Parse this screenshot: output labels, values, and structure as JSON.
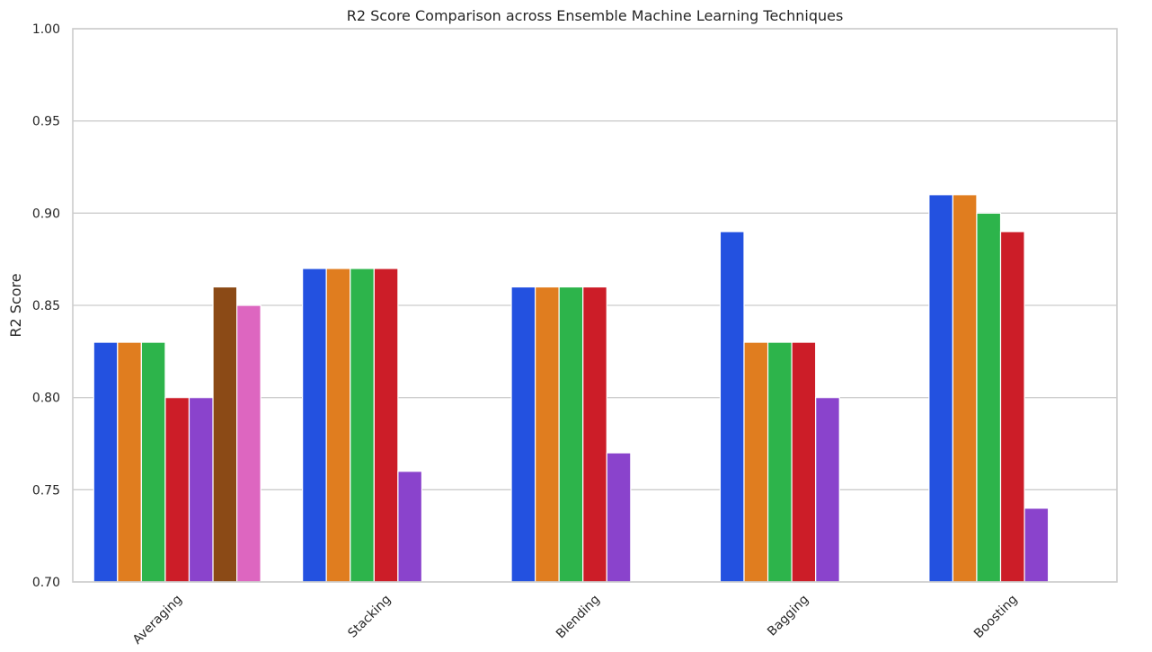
{
  "chart_data": {
    "type": "bar",
    "title": "R2 Score Comparison across Ensemble Machine Learning Techniques",
    "xlabel": "",
    "ylabel": "R2 Score",
    "ylim": [
      0.7,
      1.0
    ],
    "yticks": [
      "0.70",
      "0.75",
      "0.80",
      "0.85",
      "0.90",
      "0.95",
      "1.00"
    ],
    "grid": true,
    "legend": "none",
    "categories": [
      "Averaging",
      "Stacking",
      "Blending",
      "Bagging",
      "Boosting"
    ],
    "colors": [
      "#2351e0",
      "#e07d1f",
      "#2db44b",
      "#cc1d28",
      "#8a43cc",
      "#8b4a16",
      "#dd66c0"
    ],
    "groups": [
      [
        0.83,
        0.83,
        0.83,
        0.8,
        0.8,
        0.86,
        0.85
      ],
      [
        0.87,
        0.87,
        0.87,
        0.87,
        0.76
      ],
      [
        0.86,
        0.86,
        0.86,
        0.86,
        0.77
      ],
      [
        0.89,
        0.83,
        0.83,
        0.83,
        0.8
      ],
      [
        0.91,
        0.91,
        0.9,
        0.89,
        0.74
      ]
    ]
  }
}
